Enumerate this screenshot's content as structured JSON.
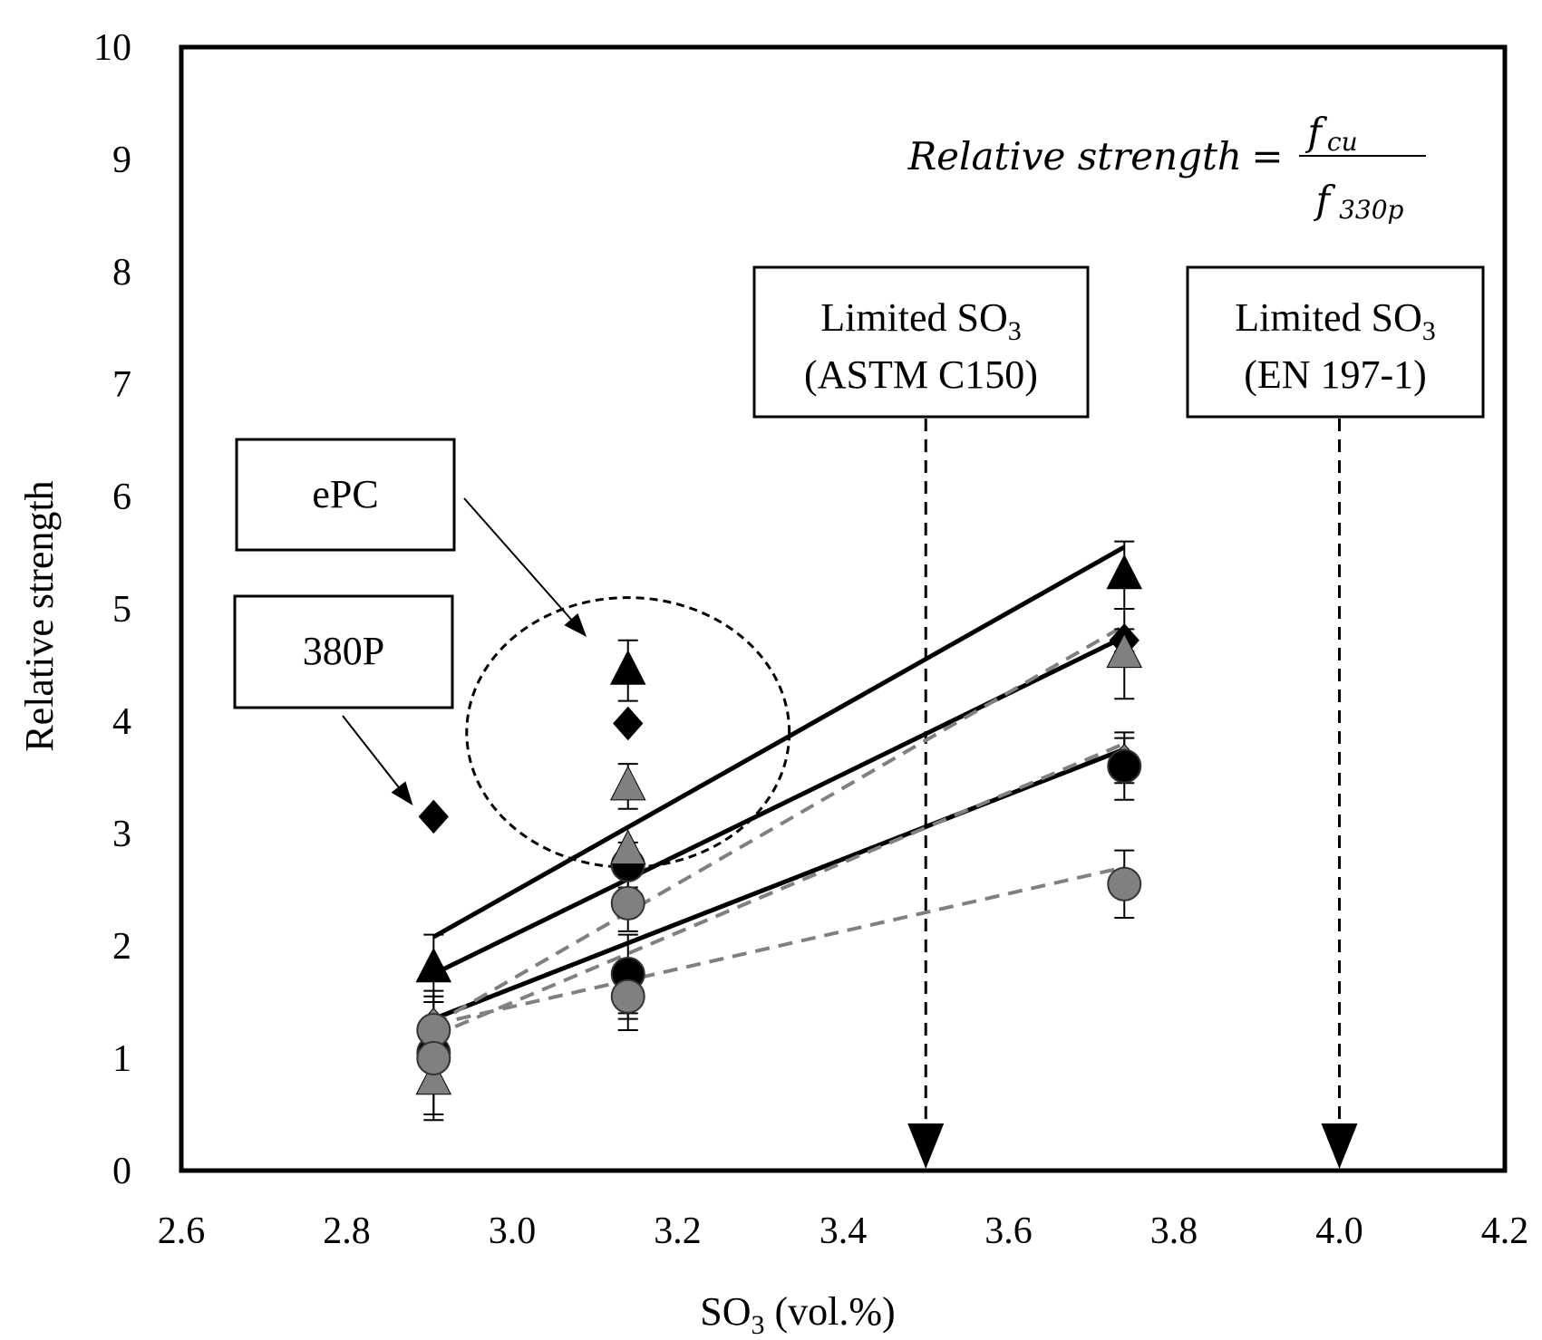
{
  "chart_data": {
    "type": "scatter",
    "title": "",
    "xlabel": "SO",
    "xlabel_sub": "3",
    "xlabel_suffix": " (vol.%)",
    "ylabel": "Relative strength",
    "xlim": [
      2.6,
      4.2
    ],
    "ylim": [
      0,
      10
    ],
    "xticks": [
      "2.6",
      "2.8",
      "3.0",
      "3.2",
      "3.4",
      "3.6",
      "3.8",
      "4.0",
      "4.2"
    ],
    "yticks": [
      "0",
      "1",
      "2",
      "3",
      "4",
      "5",
      "6",
      "7",
      "8",
      "9",
      "10"
    ],
    "grid": false,
    "formula": {
      "lhs": "Relative strength",
      "eq": "=",
      "num_main": "f",
      "num_sub": "cu",
      "den_main": "f",
      "den_sub": "330p"
    },
    "limits": [
      {
        "line1": "Limited SO",
        "sub": "3",
        "line2": "(ASTM C150)",
        "x": 3.5
      },
      {
        "line1": "Limited SO",
        "sub": "3",
        "line2": "(EN 197-1)",
        "x": 4.0
      }
    ],
    "annotations": [
      {
        "text": "ePC",
        "target": [
          3.09,
          4.75
        ]
      },
      {
        "text": "380P",
        "target": [
          2.88,
          3.25
        ]
      }
    ],
    "highlight_ellipse": {
      "cx": 3.14,
      "cy": 3.9,
      "rx": 0.195,
      "ry": 1.2
    },
    "series": [
      {
        "name": "black-triangle",
        "marker": "triangle",
        "color": "#000000",
        "x": [
          2.905,
          3.14,
          3.74
        ],
        "y": [
          1.8,
          4.45,
          5.3
        ],
        "err": [
          0.3,
          0.27,
          0.3
        ]
      },
      {
        "name": "black-diamond",
        "marker": "diamond",
        "color": "#000000",
        "x": [
          2.905,
          3.14,
          3.74
        ],
        "y": [
          3.15,
          3.98,
          4.72
        ],
        "err": [
          0,
          0,
          0.1
        ]
      },
      {
        "name": "gray-triangle",
        "marker": "triangle",
        "color": "#808080",
        "x": [
          2.905,
          3.14,
          3.74
        ],
        "y": [
          0.8,
          3.42,
          4.6
        ],
        "err": [
          0.35,
          0.2,
          0.4
        ]
      },
      {
        "name": "gray-diamond",
        "marker": "diamond",
        "color": "#808080",
        "x": [
          2.905,
          3.14,
          3.74
        ],
        "y": [
          1.3,
          1.55,
          3.65
        ],
        "err": [
          0.2,
          0.2,
          0.2
        ]
      },
      {
        "name": "black-circle",
        "marker": "circle",
        "color": "#000000",
        "x": [
          2.905,
          3.14,
          3.74
        ],
        "y": [
          1.05,
          1.75,
          3.6
        ],
        "err": [
          0.55,
          0.35,
          0.3
        ]
      },
      {
        "name": "gray-circle",
        "marker": "circle",
        "color": "#808080",
        "x": [
          2.905,
          3.14,
          3.74
        ],
        "y": [
          1.25,
          2.38,
          2.55
        ],
        "err": [
          0.3,
          0.25,
          0.3
        ]
      },
      {
        "name": "black-circle-2",
        "marker": "circle",
        "color": "#000000",
        "x": [
          3.14
        ],
        "y": [
          2.72
        ],
        "err": [
          0.2
        ]
      },
      {
        "name": "gray-circle-2",
        "marker": "circle",
        "color": "#808080",
        "x": [
          2.905,
          3.14
        ],
        "y": [
          1.0,
          1.55
        ],
        "err": [
          0,
          0.3
        ]
      },
      {
        "name": "gray-triangle-2",
        "marker": "triangle",
        "color": "#808080",
        "x": [
          3.14
        ],
        "y": [
          2.85
        ],
        "err": [
          0
        ]
      }
    ],
    "trendlines": [
      {
        "name": "trend-solid-1",
        "style": "solid",
        "color": "#000000",
        "from": [
          2.905,
          2.08
        ],
        "to": [
          3.74,
          5.55
        ]
      },
      {
        "name": "trend-solid-2",
        "style": "solid",
        "color": "#000000",
        "from": [
          2.905,
          1.75
        ],
        "to": [
          3.74,
          4.75
        ]
      },
      {
        "name": "trend-solid-3",
        "style": "solid",
        "color": "#000000",
        "from": [
          2.905,
          1.35
        ],
        "to": [
          3.74,
          3.75
        ]
      },
      {
        "name": "trend-dashed-1",
        "style": "dashed",
        "color": "#808080",
        "from": [
          2.905,
          1.3
        ],
        "to": [
          3.74,
          4.85
        ]
      },
      {
        "name": "trend-dashed-2",
        "style": "dashed",
        "color": "#808080",
        "from": [
          2.905,
          1.2
        ],
        "to": [
          3.74,
          3.8
        ]
      },
      {
        "name": "trend-dashed-3",
        "style": "dashed",
        "color": "#808080",
        "from": [
          2.905,
          1.3
        ],
        "to": [
          3.74,
          2.7
        ]
      }
    ]
  }
}
